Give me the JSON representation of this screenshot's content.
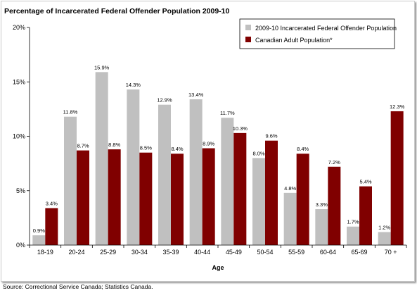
{
  "chart_data": {
    "type": "bar",
    "title": "Percentage of Incarcerated Federal Offender Population 2009-10",
    "xlabel": "Age",
    "ylabel": "",
    "ylim": [
      0,
      20
    ],
    "yticks": [
      "0%",
      "5%",
      "10%",
      "15%",
      "20%"
    ],
    "ytick_values": [
      0,
      5,
      10,
      15,
      20
    ],
    "grid": false,
    "legend_position": "top-right",
    "categories": [
      "18-19",
      "20-24",
      "25-29",
      "30-34",
      "35-39",
      "40-44",
      "45-49",
      "50-54",
      "55-59",
      "60-64",
      "65-69",
      "70 +"
    ],
    "series": [
      {
        "name": "2009-10 Incarcerated Federal Offender Population",
        "color": "#c0c0c0",
        "values": [
          0.9,
          11.8,
          15.9,
          14.3,
          12.9,
          13.4,
          11.7,
          8.0,
          4.8,
          3.3,
          1.7,
          1.2
        ],
        "labels": [
          "0.9%",
          "11.8%",
          "15.9%",
          "14.3%",
          "12.9%",
          "13.4%",
          "11.7%",
          "8.0%",
          "4.8%",
          "3.3%",
          "1.7%",
          "1.2%"
        ]
      },
      {
        "name": "Canadian Adult Population*",
        "color": "#800000",
        "values": [
          3.4,
          8.7,
          8.8,
          8.5,
          8.4,
          8.9,
          10.3,
          9.6,
          8.4,
          7.2,
          5.4,
          12.3
        ],
        "labels": [
          "3.4%",
          "8.7%",
          "8.8%",
          "8.5%",
          "8.4%",
          "8.9%",
          "10.3%",
          "9.6%",
          "8.4%",
          "7.2%",
          "5.4%",
          "12.3%"
        ]
      }
    ]
  },
  "source": "Source:  Correctional Service Canada; Statistics Canada."
}
